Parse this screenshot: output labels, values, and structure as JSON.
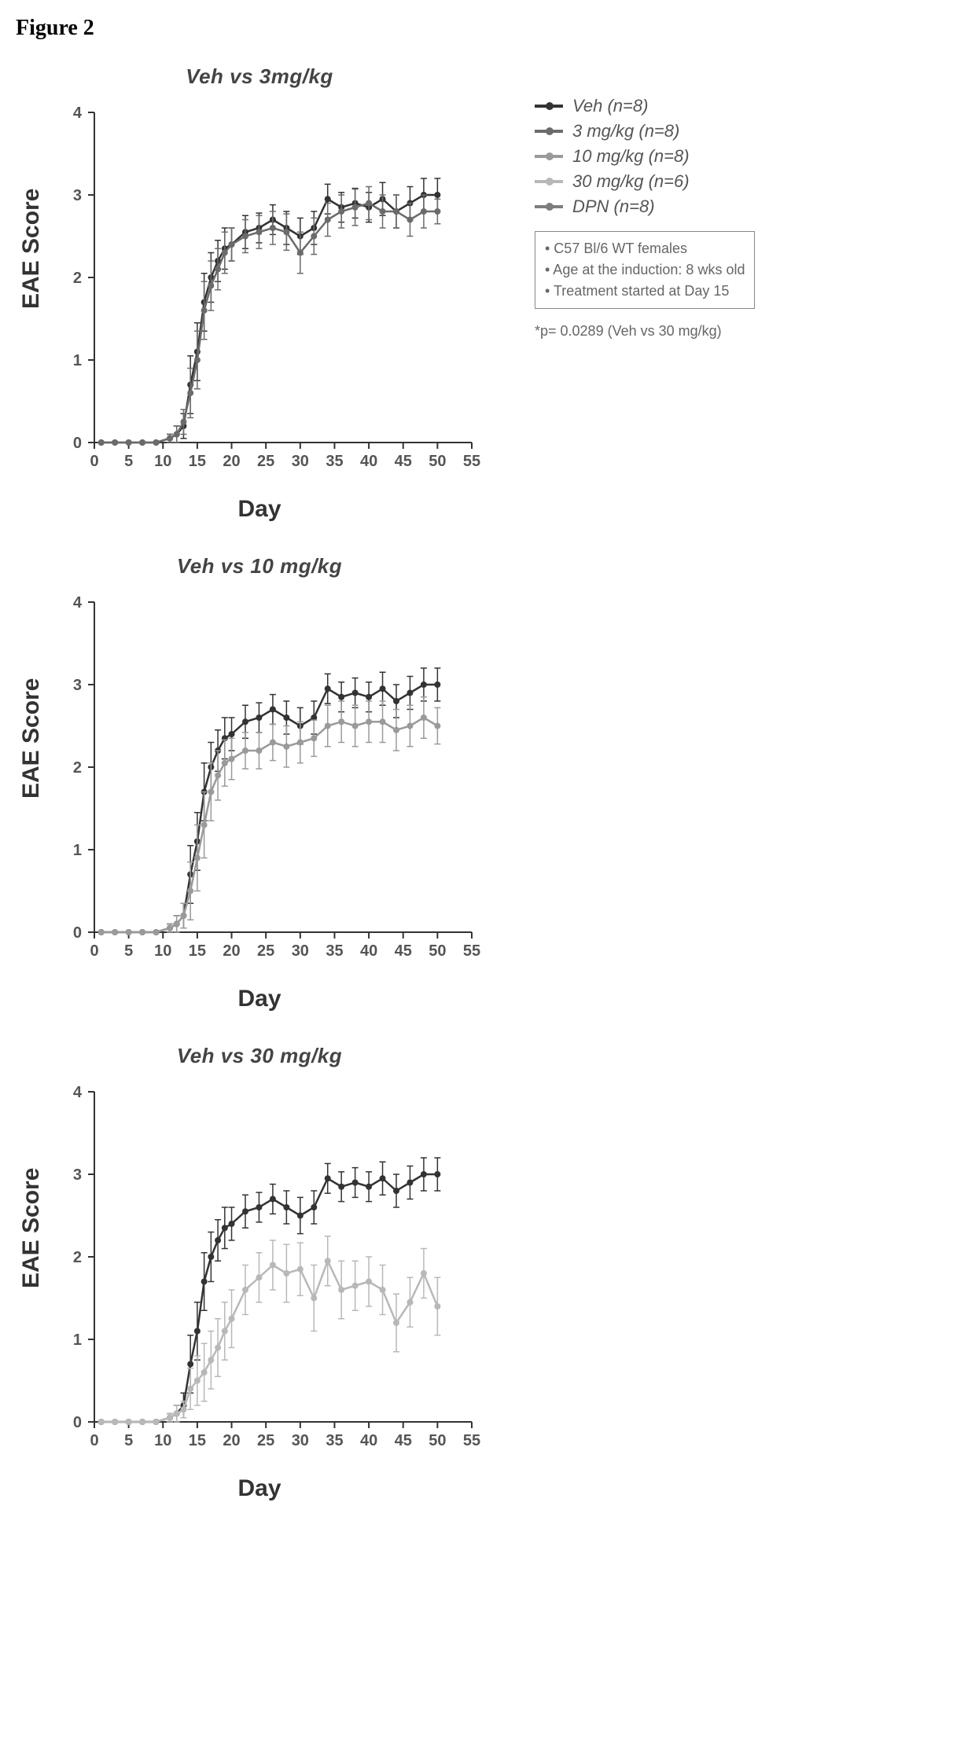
{
  "figure_label": "Figure 2",
  "global": {
    "xlabel": "Day",
    "ylabel": "EAE Score",
    "xlim": [
      0,
      55
    ],
    "ylim": [
      0,
      4
    ],
    "xtick_step": 5,
    "ytick_step": 1,
    "axis_color": "#333333",
    "tick_fontsize": 20,
    "axis_line_width": 2,
    "error_cap_width": 4
  },
  "legend": {
    "items": [
      {
        "label": "Veh (n=8)",
        "color": "#333333"
      },
      {
        "label": "3 mg/kg (n=8)",
        "color": "#6b6b6b"
      },
      {
        "label": "10 mg/kg (n=8)",
        "color": "#9a9a9a"
      },
      {
        "label": "30 mg/kg (n=6)",
        "color": "#b8b8b8"
      },
      {
        "label": "DPN (n=8)",
        "color": "#7d7d7d"
      }
    ]
  },
  "notes": [
    "• C57 Bl/6 WT females",
    "• Age at the induction: 8 wks old",
    "• Treatment started at Day 15"
  ],
  "p_note": "*p= 0.0289 (Veh vs 30 mg/kg)",
  "series_shared": {
    "Veh": {
      "color": "#333333",
      "x": [
        1,
        3,
        5,
        7,
        9,
        11,
        12,
        13,
        14,
        15,
        16,
        17,
        18,
        19,
        20,
        22,
        24,
        26,
        28,
        30,
        32,
        34,
        36,
        38,
        40,
        42,
        44,
        46,
        48,
        50
      ],
      "y": [
        0,
        0,
        0,
        0,
        0,
        0.05,
        0.1,
        0.2,
        0.7,
        1.1,
        1.7,
        2.0,
        2.2,
        2.35,
        2.4,
        2.55,
        2.6,
        2.7,
        2.6,
        2.5,
        2.6,
        2.95,
        2.85,
        2.9,
        2.85,
        2.95,
        2.8,
        2.9,
        3.0,
        3.0
      ],
      "err": [
        0,
        0,
        0,
        0,
        0,
        0.05,
        0.1,
        0.15,
        0.35,
        0.35,
        0.35,
        0.3,
        0.25,
        0.25,
        0.2,
        0.2,
        0.18,
        0.18,
        0.2,
        0.22,
        0.2,
        0.18,
        0.18,
        0.18,
        0.18,
        0.2,
        0.2,
        0.2,
        0.2,
        0.2
      ]
    }
  },
  "panels": [
    {
      "title": "Veh vs 3mg/kg",
      "series": [
        {
          "ref": "Veh"
        },
        {
          "name": "3 mg/kg",
          "color": "#6b6b6b",
          "x": [
            1,
            3,
            5,
            7,
            9,
            11,
            12,
            13,
            14,
            15,
            16,
            17,
            18,
            19,
            20,
            22,
            24,
            26,
            28,
            30,
            32,
            34,
            36,
            38,
            40,
            42,
            44,
            46,
            48,
            50
          ],
          "y": [
            0,
            0,
            0,
            0,
            0,
            0.05,
            0.1,
            0.25,
            0.6,
            1.0,
            1.6,
            1.9,
            2.1,
            2.3,
            2.4,
            2.5,
            2.55,
            2.6,
            2.55,
            2.3,
            2.5,
            2.7,
            2.8,
            2.85,
            2.9,
            2.8,
            2.8,
            2.7,
            2.8,
            2.8
          ],
          "err": [
            0,
            0,
            0,
            0,
            0,
            0.05,
            0.1,
            0.15,
            0.3,
            0.35,
            0.35,
            0.3,
            0.25,
            0.25,
            0.2,
            0.2,
            0.2,
            0.2,
            0.22,
            0.25,
            0.22,
            0.2,
            0.2,
            0.22,
            0.2,
            0.2,
            0.2,
            0.2,
            0.2,
            0.15
          ]
        }
      ]
    },
    {
      "title": "Veh vs 10 mg/kg",
      "series": [
        {
          "ref": "Veh"
        },
        {
          "name": "10 mg/kg",
          "color": "#9a9a9a",
          "x": [
            1,
            3,
            5,
            7,
            9,
            11,
            12,
            13,
            14,
            15,
            16,
            17,
            18,
            19,
            20,
            22,
            24,
            26,
            28,
            30,
            32,
            34,
            36,
            38,
            40,
            42,
            44,
            46,
            48,
            50
          ],
          "y": [
            0,
            0,
            0,
            0,
            0,
            0.05,
            0.1,
            0.2,
            0.5,
            0.9,
            1.3,
            1.7,
            1.9,
            2.05,
            2.1,
            2.2,
            2.2,
            2.3,
            2.25,
            2.3,
            2.35,
            2.5,
            2.55,
            2.5,
            2.55,
            2.55,
            2.45,
            2.5,
            2.6,
            2.5
          ],
          "err": [
            0,
            0,
            0,
            0,
            0,
            0.05,
            0.1,
            0.15,
            0.35,
            0.4,
            0.4,
            0.35,
            0.3,
            0.28,
            0.25,
            0.22,
            0.22,
            0.22,
            0.25,
            0.25,
            0.22,
            0.25,
            0.25,
            0.25,
            0.25,
            0.25,
            0.25,
            0.25,
            0.25,
            0.22
          ]
        }
      ]
    },
    {
      "title": "Veh vs 30 mg/kg",
      "series": [
        {
          "ref": "Veh"
        },
        {
          "name": "30 mg/kg",
          "color": "#b8b8b8",
          "x": [
            1,
            3,
            5,
            7,
            9,
            11,
            12,
            13,
            14,
            15,
            16,
            17,
            18,
            19,
            20,
            22,
            24,
            26,
            28,
            30,
            32,
            34,
            36,
            38,
            40,
            42,
            44,
            46,
            48,
            50
          ],
          "y": [
            0,
            0,
            0,
            0,
            0,
            0.05,
            0.1,
            0.15,
            0.4,
            0.5,
            0.6,
            0.75,
            0.9,
            1.1,
            1.25,
            1.6,
            1.75,
            1.9,
            1.8,
            1.85,
            1.5,
            1.95,
            1.6,
            1.65,
            1.7,
            1.6,
            1.2,
            1.45,
            1.8,
            1.4
          ],
          "err": [
            0,
            0,
            0,
            0,
            0,
            0.05,
            0.1,
            0.1,
            0.25,
            0.3,
            0.35,
            0.35,
            0.35,
            0.35,
            0.35,
            0.3,
            0.3,
            0.3,
            0.35,
            0.32,
            0.4,
            0.3,
            0.35,
            0.3,
            0.3,
            0.3,
            0.35,
            0.3,
            0.3,
            0.35
          ]
        }
      ]
    }
  ]
}
